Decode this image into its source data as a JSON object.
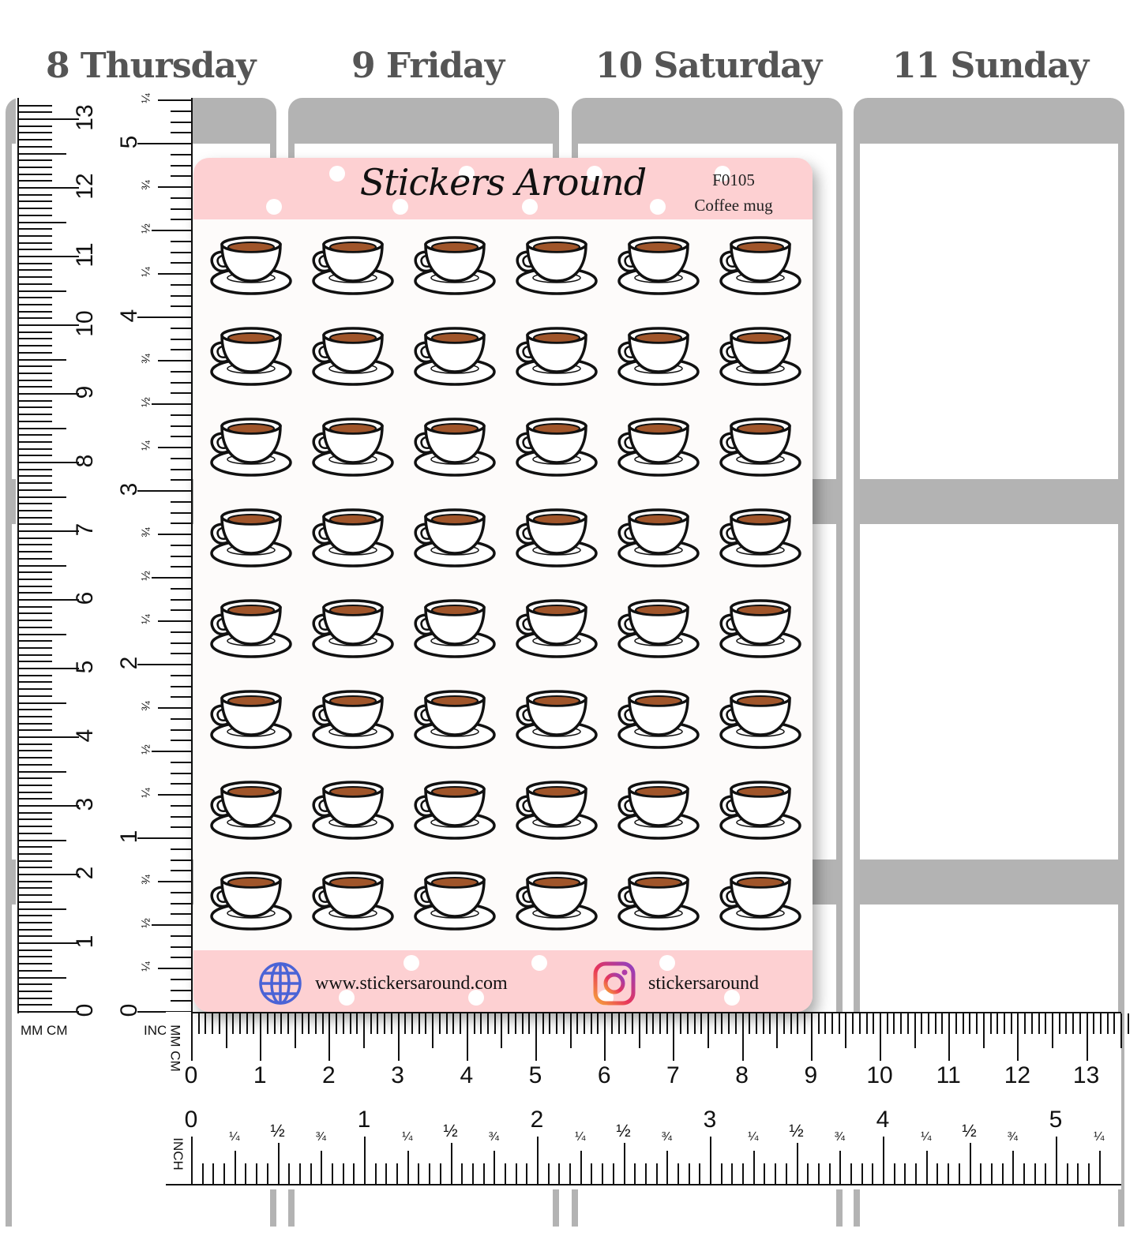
{
  "planner": {
    "days": [
      {
        "label": "8 Thursday"
      },
      {
        "label": "9 Friday"
      },
      {
        "label": "10 Saturday"
      },
      {
        "label": "11 Sunday"
      }
    ],
    "colors": {
      "column_gray": "#b3b3b3",
      "heading_text": "#555555"
    }
  },
  "sticker_sheet": {
    "brand": "Stickers Around",
    "product_code": "F0105",
    "product_name": "Coffee mug",
    "grid": {
      "rows": 8,
      "columns": 6,
      "icon": "coffee-cup-icon",
      "total": 48
    },
    "footer": {
      "website": "www.stickersaround.com",
      "website_icon": "globe-icon",
      "instagram": "stickersaround",
      "instagram_icon": "instagram-icon"
    },
    "colors": {
      "band_pink": "#fdd0d2",
      "sheet_bg": "#fdfbfa",
      "coffee": "#a0552a",
      "globe_blue": "#4a63d6"
    }
  },
  "vertical_ruler": {
    "labels": {
      "mm_cm": "MM CM",
      "inch": "INCH"
    },
    "cm": [
      "0",
      "1",
      "2",
      "3",
      "4",
      "5",
      "6",
      "7",
      "8",
      "9",
      "10",
      "11",
      "12",
      "13"
    ],
    "inch": [
      "0",
      "1",
      "2",
      "3",
      "4",
      "5"
    ],
    "fractions": [
      "¼",
      "½",
      "¾"
    ]
  },
  "horizontal_ruler": {
    "labels": {
      "mm_cm": "MM CM",
      "inch": "INCH"
    },
    "cm": [
      "0",
      "1",
      "2",
      "3",
      "4",
      "5",
      "6",
      "7",
      "8",
      "9",
      "10",
      "11",
      "12",
      "13"
    ],
    "inch": [
      "0",
      "1",
      "2",
      "3",
      "4",
      "5"
    ],
    "fractions": [
      "¼",
      "½",
      "¾"
    ]
  }
}
